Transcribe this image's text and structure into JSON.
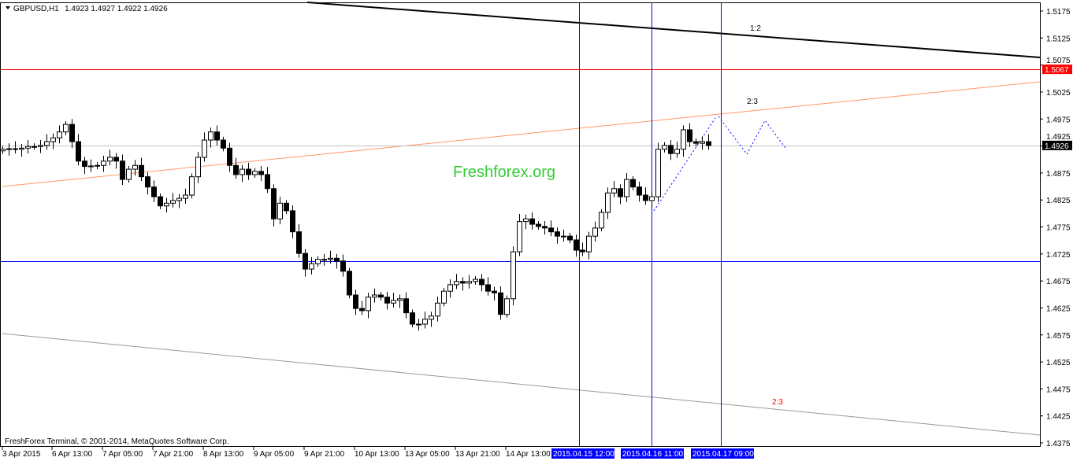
{
  "header": {
    "symbol": "GBPUSD,H1",
    "ohlc": "1.4923 1.4927 1.4922 1.4926"
  },
  "footer": {
    "copyright": "FreshForex Terminal, © 2001-2014, MetaQuotes Software Corp."
  },
  "watermark": "Freshforex.org",
  "colors": {
    "red_line": "#ff0000",
    "salmon_line": "#ff9966",
    "support_line": "#0000ff",
    "vertical_lines": "#0000ff",
    "watermark": "#33cc33",
    "current_price_tag": "#000000"
  },
  "chart_data": {
    "type": "candlestick",
    "symbol": "GBPUSD",
    "timeframe": "H1",
    "ylim": [
      1.4375,
      1.5175
    ],
    "y_ticks": [
      "1.5175",
      "1.5125",
      "1.5075",
      "1.5025",
      "1.4975",
      "1.4925",
      "1.4875",
      "1.4825",
      "1.4775",
      "1.4725",
      "1.4675",
      "1.4625",
      "1.4575",
      "1.4525",
      "1.4475",
      "1.4425",
      "1.4375"
    ],
    "x_ticks": [
      "3 Apr 2015",
      "6 Apr 13:00",
      "7 Apr 05:00",
      "7 Apr 21:00",
      "8 Apr 13:00",
      "9 Apr 05:00",
      "9 Apr 21:00",
      "10 Apr 13:00",
      "13 Apr 05:00",
      "13 Apr 21:00",
      "14 Apr 13:00"
    ],
    "highlighted_times": [
      "2015.04.15 12:00",
      "2015.04.16 11:00",
      "2015.04.17 09:00"
    ],
    "closes": [
      1.4919,
      1.492,
      1.4919,
      1.4921,
      1.4924,
      1.4924,
      1.4926,
      1.4933,
      1.494,
      1.4951,
      1.4965,
      1.4933,
      1.4897,
      1.4887,
      1.4888,
      1.4889,
      1.4897,
      1.4904,
      1.4897,
      1.4863,
      1.4882,
      1.4889,
      1.4868,
      1.4849,
      1.4831,
      1.4814,
      1.4819,
      1.4824,
      1.4828,
      1.4834,
      1.4868,
      1.4904,
      1.4936,
      1.4951,
      1.4936,
      1.4921,
      1.4889,
      1.4872,
      1.4882,
      1.4872,
      1.4878,
      1.4872,
      1.4846,
      1.479,
      1.4819,
      1.4805,
      1.4766,
      1.4726,
      1.4697,
      1.4707,
      1.4715,
      1.4715,
      1.4717,
      1.4712,
      1.4693,
      1.4649,
      1.4624,
      1.462,
      1.4645,
      1.4649,
      1.4645,
      1.4634,
      1.4639,
      1.4642,
      1.4616,
      1.4595,
      1.4595,
      1.4604,
      1.461,
      1.4634,
      1.4656,
      1.4668,
      1.4674,
      1.4671,
      1.4674,
      1.4678,
      1.4668,
      1.4656,
      1.4653,
      1.4613,
      1.4642,
      1.4729,
      1.4785,
      1.479,
      1.478,
      1.4776,
      1.4773,
      1.4766,
      1.4758,
      1.4758,
      1.4751,
      1.4732,
      1.4729,
      1.4758,
      1.4773,
      1.4802,
      1.4838,
      1.4846,
      1.4831,
      1.4863,
      1.4849,
      1.4834,
      1.4824,
      1.4831,
      1.4919,
      1.4926,
      1.4911,
      1.4919,
      1.4955,
      1.4933,
      1.493,
      1.4933,
      1.4926
    ],
    "horizontal_lines": [
      {
        "price": 1.5067,
        "color": "#ff0000",
        "tag": "1.5067"
      },
      {
        "price": 1.4926,
        "color": "#c0c0c0",
        "tag": "1.4926"
      },
      {
        "price": 1.4712,
        "color": "#0000ff"
      }
    ],
    "annotations": [
      "1:2",
      "2:3",
      "2:3"
    ]
  }
}
